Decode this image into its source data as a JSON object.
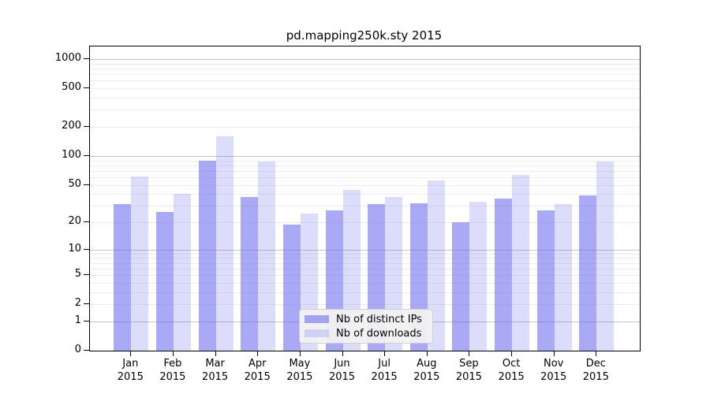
{
  "title": "pd.mapping250k.sty 2015",
  "legend": {
    "items": [
      {
        "label": "Nb of distinct IPs",
        "series": "ips"
      },
      {
        "label": "Nb of downloads",
        "series": "downloads"
      }
    ]
  },
  "colors": {
    "bar_base": "#6666ee",
    "bar_ips": "rgba(102,102,238,0.56)",
    "bar_downloads": "rgba(102,102,238,0.23)",
    "grid_major": "#c3c3c3",
    "grid_minor": "#ececec",
    "axis": "#000000",
    "legend_bg": "#f2f2f2",
    "legend_border": "#cfcfcf"
  },
  "chart_data": {
    "type": "bar",
    "title": "pd.mapping250k.sty 2015",
    "categories": [
      "Jan 2015",
      "Feb 2015",
      "Mar 2015",
      "Apr 2015",
      "May 2015",
      "Jun 2015",
      "Jul 2015",
      "Aug 2015",
      "Sep 2015",
      "Oct 2015",
      "Nov 2015",
      "Dec 2015"
    ],
    "category_months": [
      "Jan",
      "Feb",
      "Mar",
      "Apr",
      "May",
      "Jun",
      "Jul",
      "Aug",
      "Sep",
      "Oct",
      "Nov",
      "Dec"
    ],
    "category_year": "2015",
    "series": [
      {
        "name": "Nb of distinct IPs",
        "color": "rgba(102,102,238,0.56)",
        "values": [
          31,
          26,
          90,
          37,
          19,
          27,
          31,
          32,
          20,
          36,
          27,
          39
        ]
      },
      {
        "name": "Nb of downloads",
        "color": "rgba(102,102,238,0.23)",
        "values": [
          61,
          40,
          160,
          88,
          25,
          44,
          37,
          56,
          33,
          63,
          31,
          88
        ]
      }
    ],
    "xlabel": "",
    "ylabel": "",
    "yscale": "log1p",
    "y_ticks": [
      0,
      1,
      2,
      5,
      10,
      20,
      50,
      100,
      200,
      500,
      1000
    ],
    "y_tick_labels": [
      "0",
      "1",
      "2",
      "5",
      "10",
      "20",
      "50",
      "100",
      "200",
      "500",
      "1000"
    ],
    "y_major_gridlines": [
      1,
      10,
      100,
      1000
    ],
    "y_minor_gridlines": [
      2,
      3,
      4,
      5,
      6,
      7,
      8,
      9,
      20,
      30,
      40,
      50,
      60,
      70,
      80,
      90,
      200,
      300,
      400,
      500,
      600,
      700,
      800,
      900
    ],
    "ylim": [
      0,
      1300
    ],
    "grid": true,
    "legend_position": "lower center"
  }
}
